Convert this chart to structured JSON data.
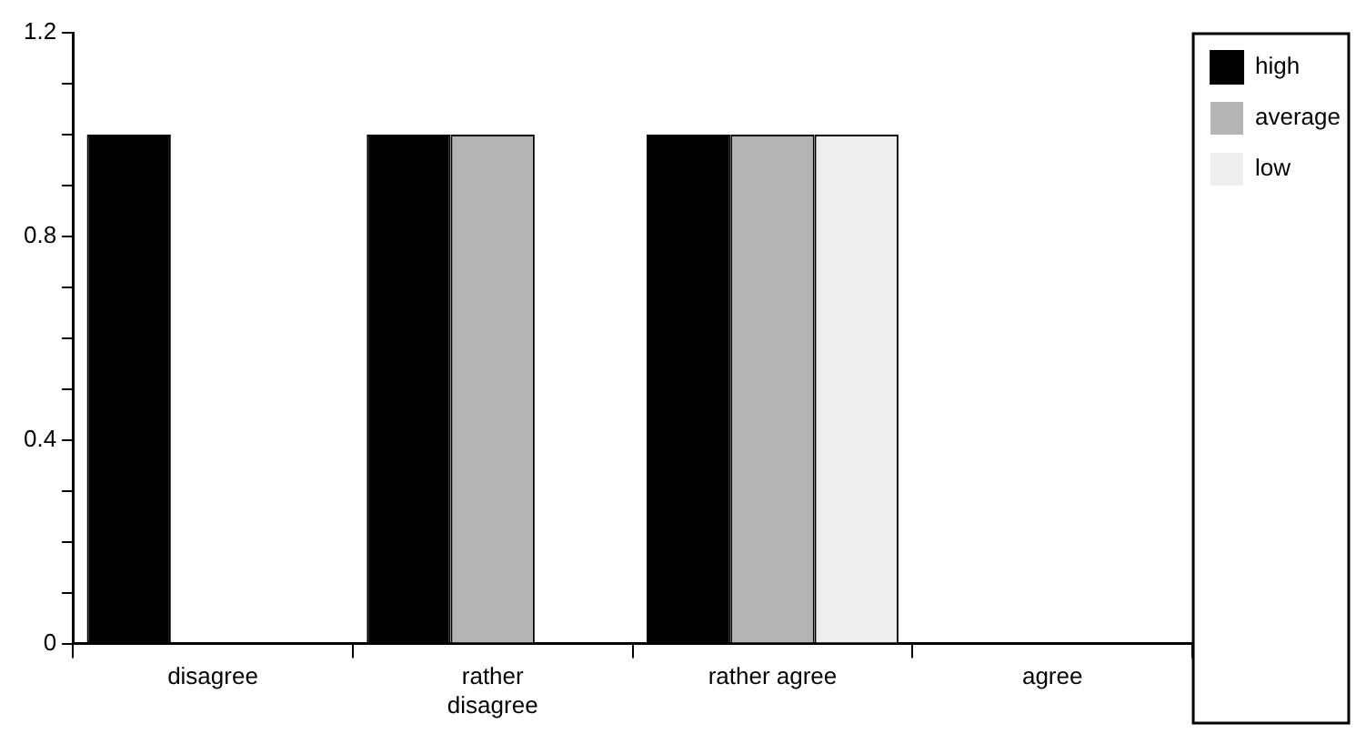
{
  "chart_data": {
    "type": "bar",
    "categories": [
      "disagree",
      "rather disagree",
      "rather agree",
      "agree"
    ],
    "series": [
      {
        "name": "high",
        "color": "#000000",
        "values": [
          1,
          1,
          1,
          0
        ]
      },
      {
        "name": "average",
        "color": "#b4b4b4",
        "values": [
          0,
          1,
          1,
          0
        ]
      },
      {
        "name": "low",
        "color": "#eeeeee",
        "values": [
          0,
          0,
          1,
          0
        ]
      }
    ],
    "ylim": [
      0,
      1.2
    ],
    "yticks": [
      0,
      {
        "value": 0.1,
        "label": null
      },
      {
        "value": 0.2,
        "label": null
      },
      {
        "value": 0.3,
        "label": null
      },
      0.4,
      {
        "value": 0.5,
        "label": null
      },
      {
        "value": 0.6,
        "label": null
      },
      {
        "value": 0.7,
        "label": null
      },
      0.8,
      {
        "value": 0.9,
        "label": null
      },
      {
        "value": 1,
        "label": null
      },
      {
        "value": 1.1,
        "label": null
      },
      1.2
    ],
    "grid": false,
    "legend": "top right"
  }
}
